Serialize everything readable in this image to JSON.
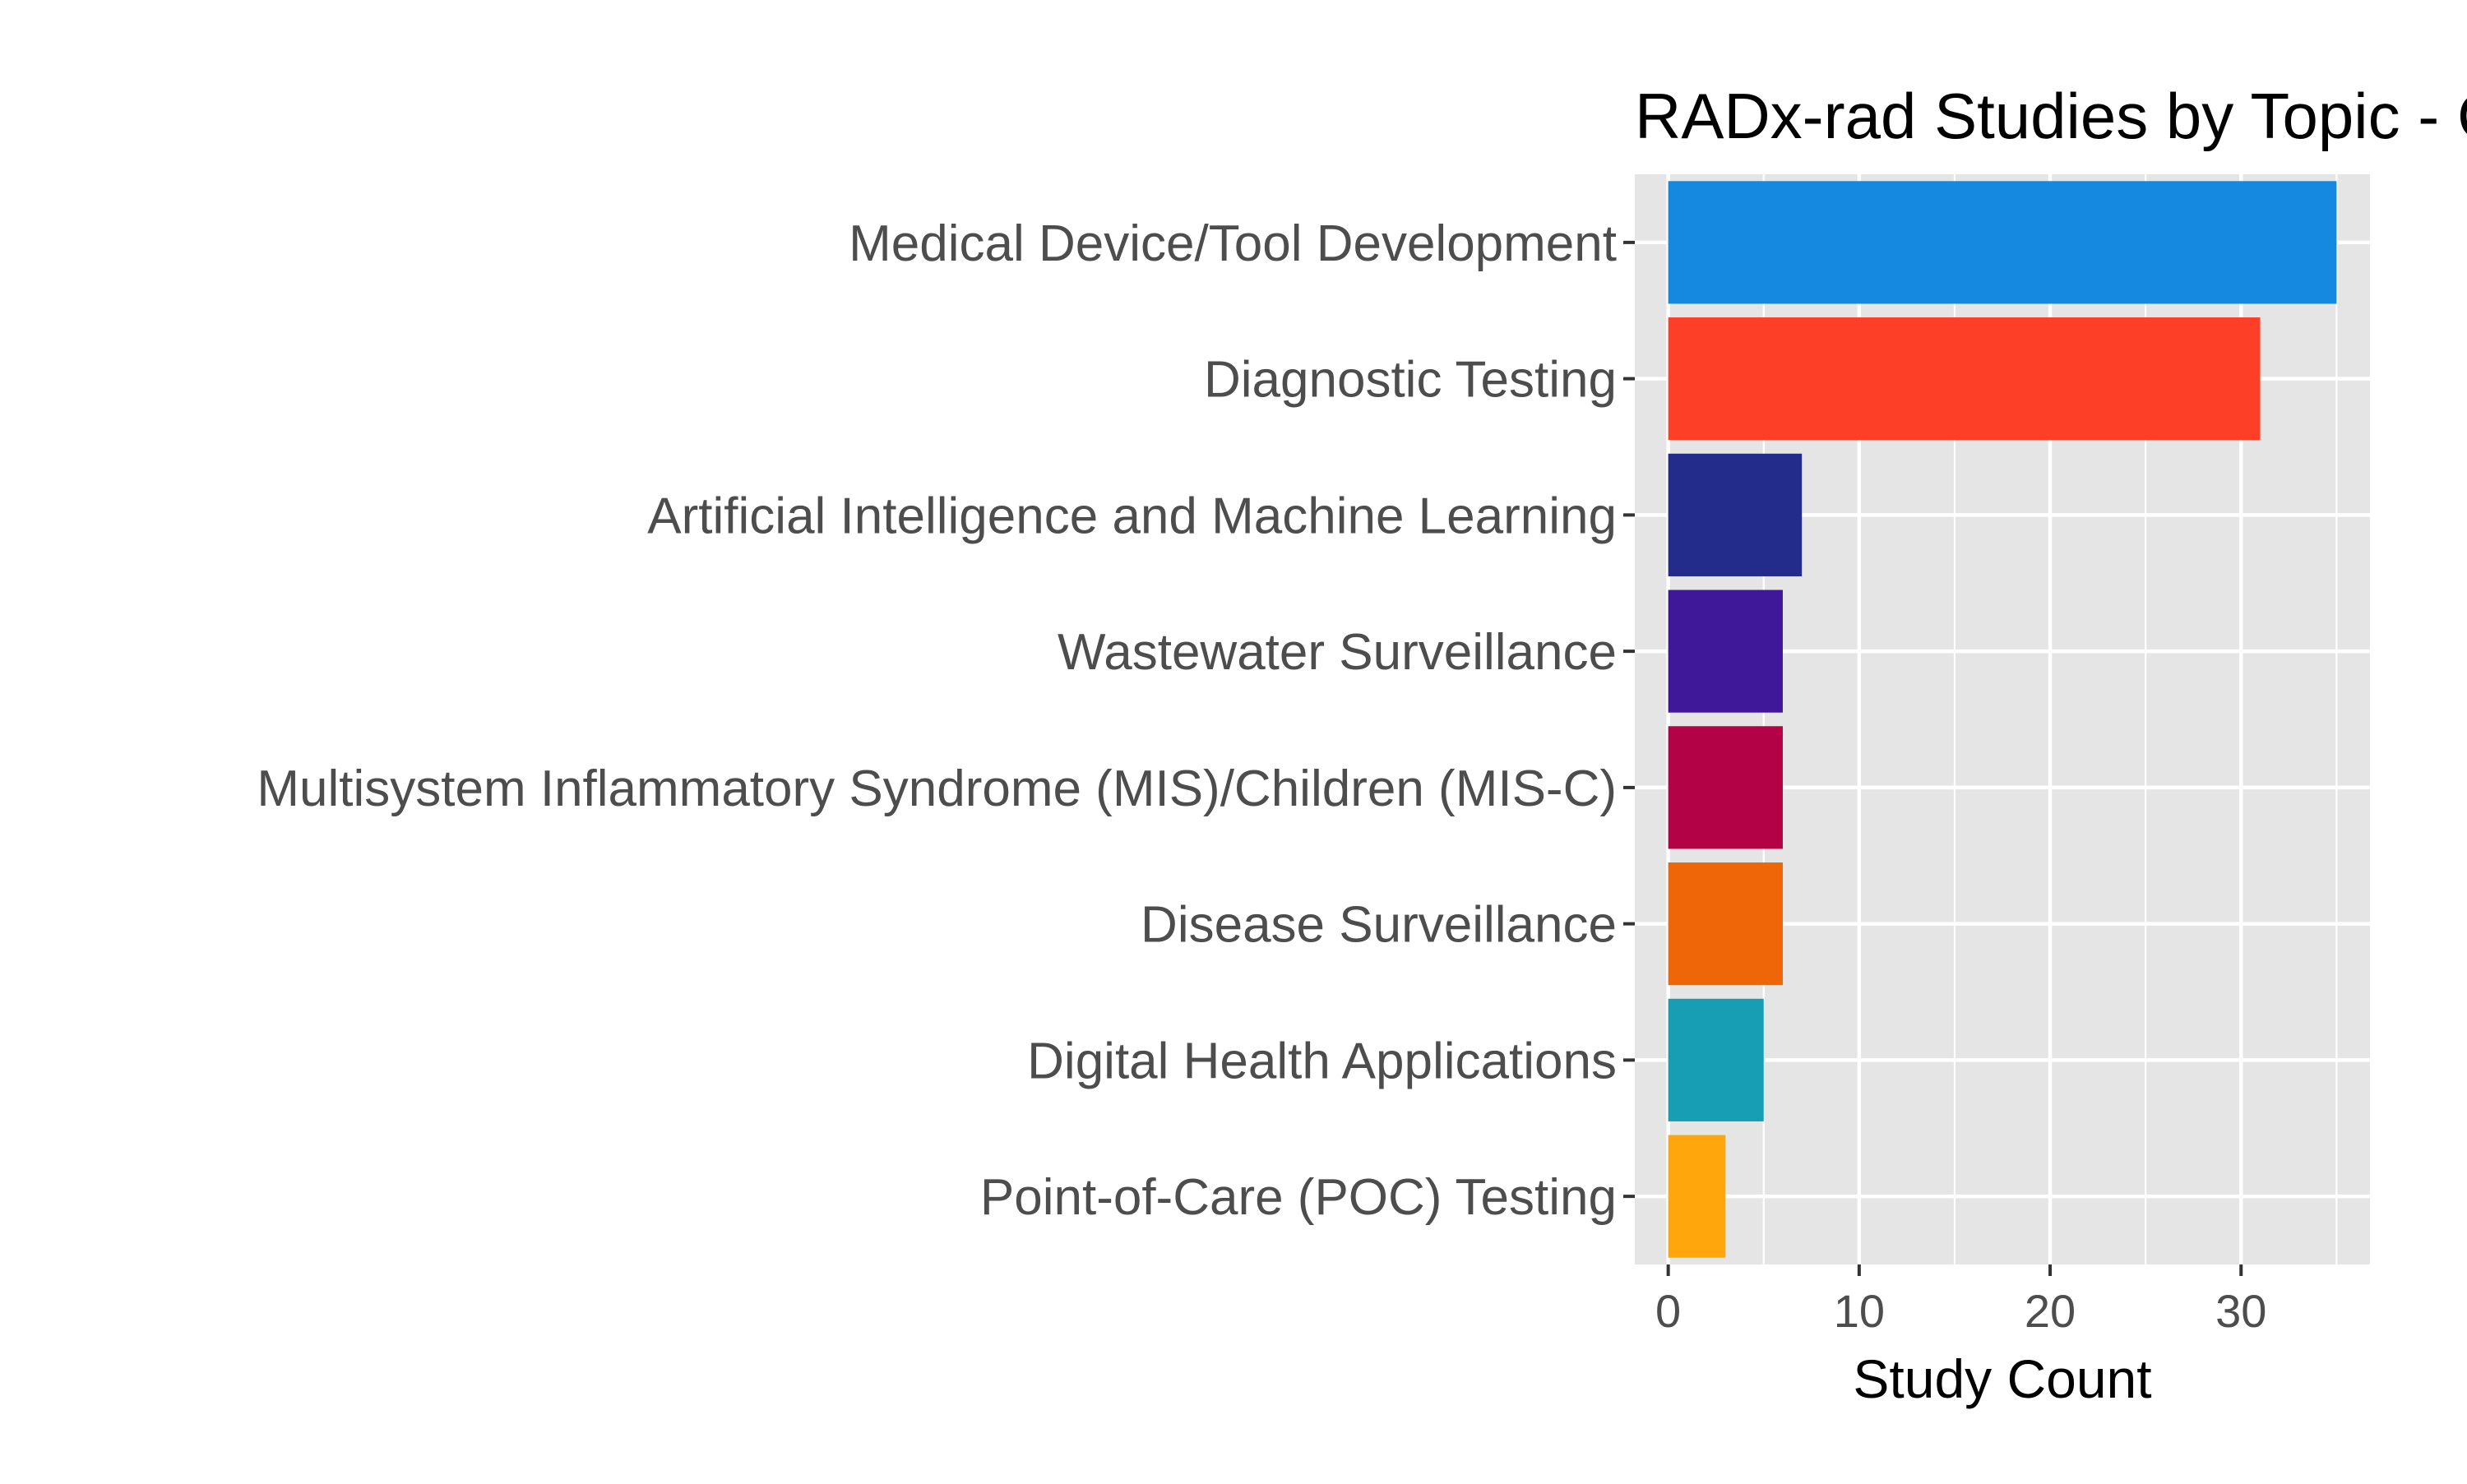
{
  "chart_data": {
    "type": "bar",
    "orientation": "horizontal",
    "title": "RADx-rad Studies by Topic - C",
    "xlabel": "Study Count",
    "ylabel": "",
    "categories": [
      "Medical Device/Tool Development",
      "Diagnostic Testing",
      "Artificial Intelligence and Machine Learning",
      "Wastewater Surveillance",
      "Multisystem Inflammatory Syndrome (MIS)/Children (MIS-C)",
      "Disease Surveillance",
      "Digital Health Applications",
      "Point-of-Care (POC) Testing"
    ],
    "values": [
      35,
      31,
      7,
      6,
      6,
      6,
      5,
      3
    ],
    "colors": [
      "#1589df",
      "#fd3f28",
      "#232b8b",
      "#3f189a",
      "#b30245",
      "#ef6609",
      "#179eb4",
      "#fea60c"
    ],
    "xlim": [
      -1.75,
      36.75
    ],
    "xticks": [
      0,
      10,
      20,
      30
    ],
    "xtick_labels": [
      "0",
      "10",
      "20",
      "30"
    ],
    "grid": true,
    "panel_background": "#e5e5e5",
    "grid_color": "#ffffff",
    "legend": "none"
  }
}
